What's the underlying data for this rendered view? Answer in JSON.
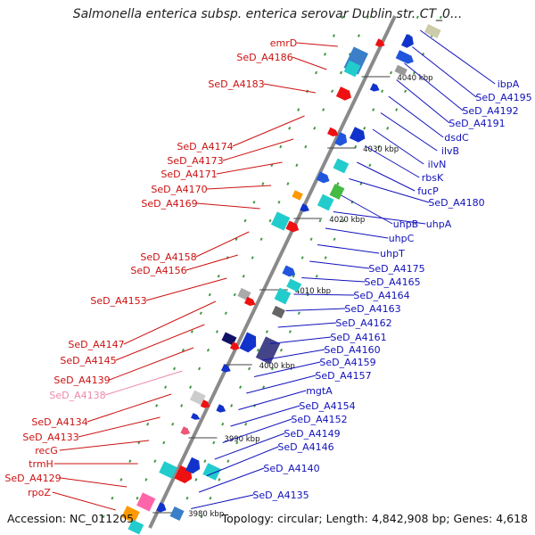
{
  "title": "Salmonella enterica subsp. enterica serovar Dublin str. CT_0...",
  "footer": {
    "accession": "Accession: NC_011205",
    "summary": "Topology: circular; Length: 4,842,908 bp; Genes: 4,618"
  },
  "colors": {
    "backbone": "#8a8a8a",
    "left_label": "#cc1111",
    "right_label": "#1111bb",
    "pseudo_label": "#ee88aa",
    "tick": "#228822"
  },
  "kbp_ticks": [
    "4040 kbp",
    "4030 kbp",
    "4020 kbp",
    "4010 kbp",
    "4000 kbp",
    "3990 kbp",
    "3980 kbp"
  ],
  "left_labels": [
    "emrD",
    "SeD_A4186",
    "SeD_A4183",
    "SeD_A4174",
    "SeD_A4173",
    "SeD_A4171",
    "SeD_A4170",
    "SeD_A4169",
    "SeD_A4158",
    "SeD_A4156",
    "SeD_A4153",
    "SeD_A4147",
    "SeD_A4145",
    "SeD_A4139",
    "SeD_A4138",
    "SeD_A4134",
    "SeD_A4133",
    "recG",
    "trmH",
    "SeD_A4129",
    "rpoZ"
  ],
  "right_labels": [
    "ibpA",
    "SeD_A4195",
    "SeD_A4192",
    "SeD_A4191",
    "dsdC",
    "ilvB",
    "ilvN",
    "rbsK",
    "fucP",
    "SeD_A4180",
    "uhpB",
    "uhpA",
    "uhpC",
    "uhpT",
    "SeD_A4175",
    "SeD_A4165",
    "SeD_A4164",
    "SeD_A4163",
    "SeD_A4162",
    "SeD_A4161",
    "SeD_A4160",
    "SeD_A4159",
    "SeD_A4157",
    "mgtA",
    "SeD_A4154",
    "SeD_A4152",
    "SeD_A4149",
    "SeD_A4146",
    "SeD_A4140",
    "SeD_A4135"
  ]
}
